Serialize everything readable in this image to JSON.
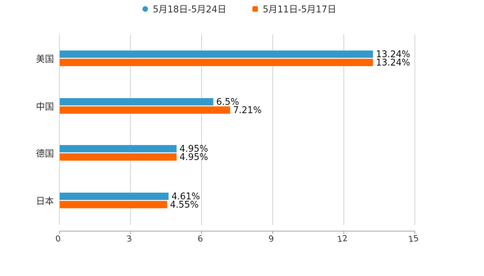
{
  "chart_data": {
    "type": "bar",
    "orientation": "horizontal",
    "title": "",
    "categories": [
      "美国",
      "中国",
      "德国",
      "日本"
    ],
    "series": [
      {
        "name": "5月18日-5月24日",
        "color": "#3399cc",
        "values": [
          13.24,
          6.5,
          4.95,
          4.61
        ],
        "labels": [
          "13.24%",
          "6.5%",
          "4.95%",
          "4.61%"
        ]
      },
      {
        "name": "5月11日-5月17日",
        "color": "#ff6600",
        "values": [
          13.24,
          7.21,
          4.95,
          4.55
        ],
        "labels": [
          "13.24%",
          "7.21%",
          "4.95%",
          "4.55%"
        ]
      }
    ],
    "xlim": [
      0,
      15
    ],
    "xticks": [
      "0",
      "3",
      "6",
      "9",
      "12",
      "15"
    ],
    "xlabel": "",
    "ylabel": "",
    "grid": true,
    "legend": "top-center"
  }
}
